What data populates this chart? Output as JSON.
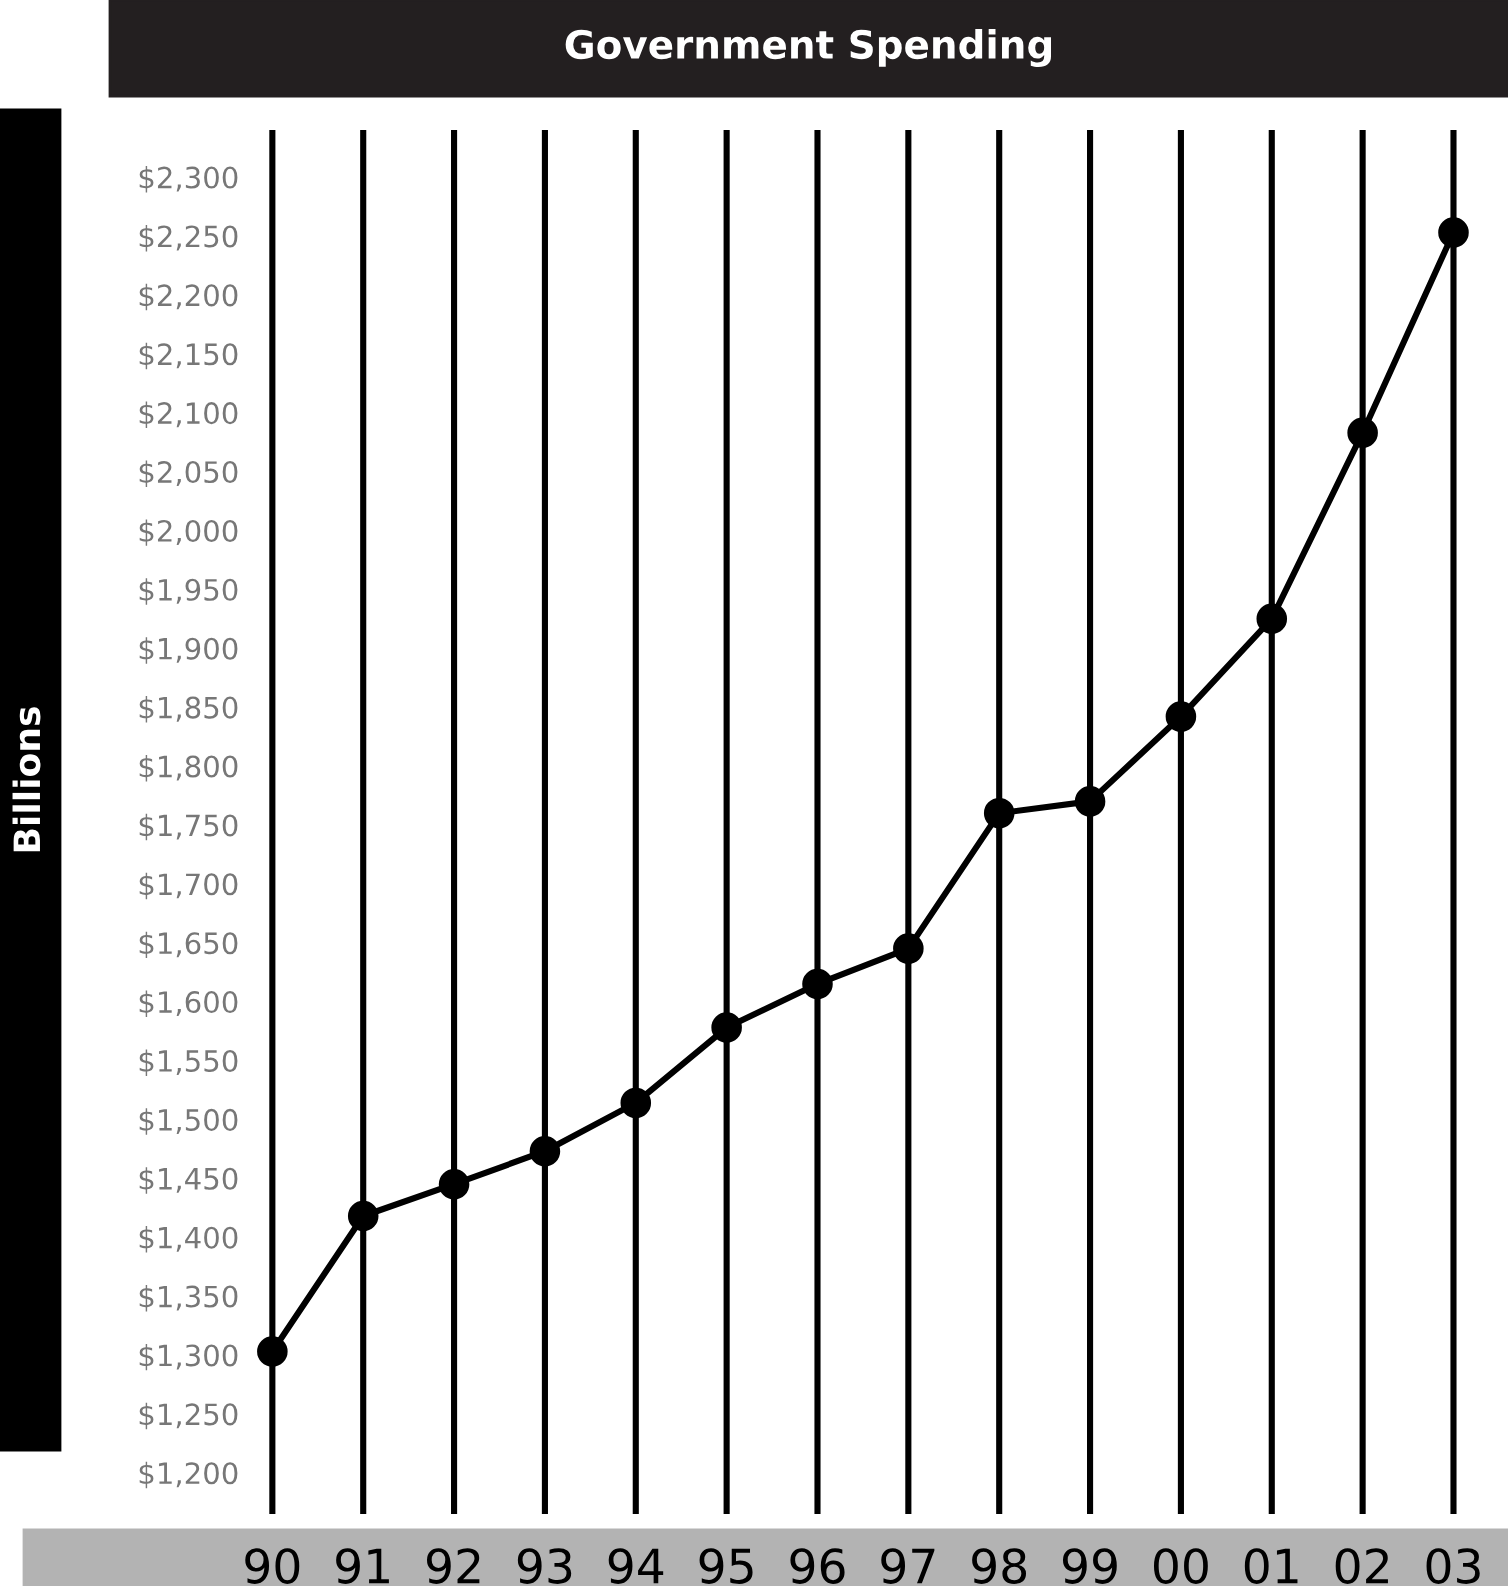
{
  "chart_data": {
    "type": "line",
    "title": "Government Spending",
    "ylabel": "Billions",
    "categories": [
      "90",
      "91",
      "92",
      "93",
      "94",
      "95",
      "96",
      "97",
      "98",
      "99",
      "00",
      "01",
      "02",
      "03"
    ],
    "series": [
      {
        "color": "#000000",
        "values": [
          1303,
          1418,
          1445,
          1473,
          1514,
          1578,
          1615,
          1645,
          1760,
          1770,
          1842,
          1925,
          2083,
          2253
        ]
      }
    ],
    "ylim": [
      1165,
      2340
    ],
    "yticks": [
      {
        "value": 1200,
        "label": "$1,200"
      },
      {
        "value": 1250,
        "label": "$1,250"
      },
      {
        "value": 1300,
        "label": "$1,300"
      },
      {
        "value": 1350,
        "label": "$1,350"
      },
      {
        "value": 1400,
        "label": "$1,400"
      },
      {
        "value": 1450,
        "label": "$1,450"
      },
      {
        "value": 1500,
        "label": "$1,500"
      },
      {
        "value": 1550,
        "label": "$1,550"
      },
      {
        "value": 1600,
        "label": "$1,600"
      },
      {
        "value": 1650,
        "label": "$1,650"
      },
      {
        "value": 1700,
        "label": "$1,700"
      },
      {
        "value": 1750,
        "label": "$1,750"
      },
      {
        "value": 1800,
        "label": "$1,800"
      },
      {
        "value": 1850,
        "label": "$1,850"
      },
      {
        "value": 1900,
        "label": "$1,900"
      },
      {
        "value": 1950,
        "label": "$1,950"
      },
      {
        "value": 2000,
        "label": "$2,000"
      },
      {
        "value": 2050,
        "label": "$2,050"
      },
      {
        "value": 2100,
        "label": "$2,100"
      },
      {
        "value": 2150,
        "label": "$2,150"
      },
      {
        "value": 2200,
        "label": "$2,200"
      },
      {
        "value": 2250,
        "label": "$2,250"
      },
      {
        "value": 2300,
        "label": "$2,300"
      }
    ],
    "grid": "x",
    "marker": "circle",
    "line_style": "solid"
  }
}
